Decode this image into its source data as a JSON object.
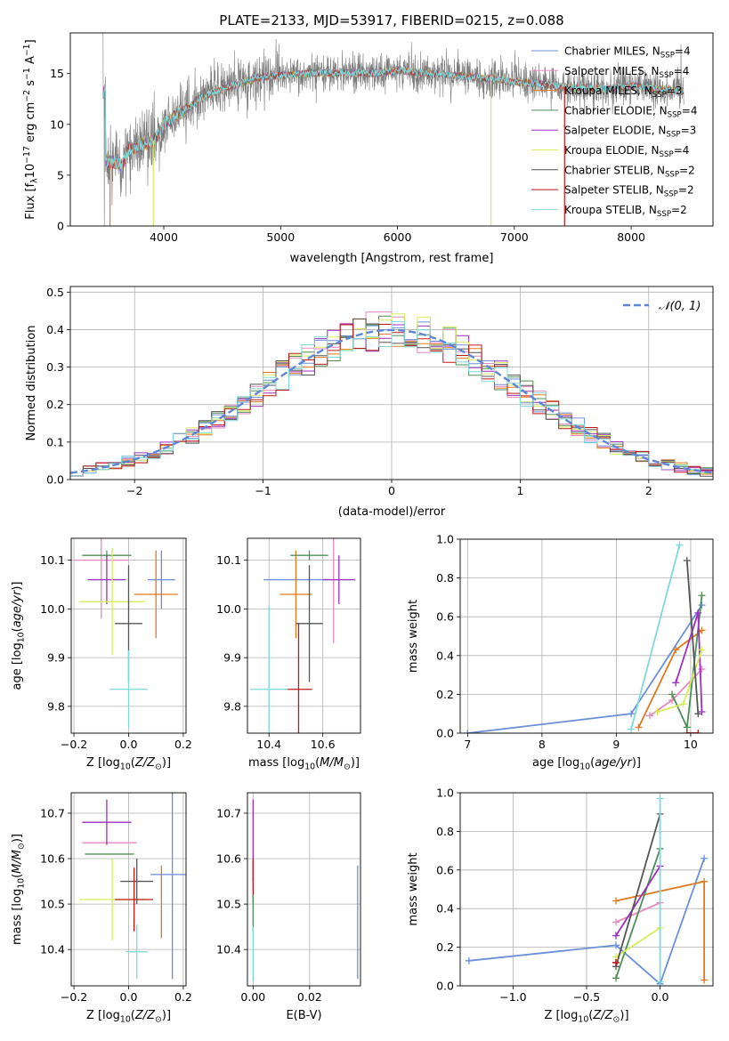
{
  "figure_title": "PLATE=2133, MJD=53917, FIBERID=0215, z=0.088",
  "colors": {
    "Chabrier MILES": "#6a8fdc",
    "Salpeter MILES": "#e58ac1",
    "Kroupa MILES": "#e07a1f",
    "Chabrier ELODIE": "#4f8f57",
    "Salpeter ELODIE": "#9b30c0",
    "Kroupa ELODIE": "#d6ec5a",
    "Chabrier STELIB": "#555555",
    "Salpeter STELIB": "#c01818",
    "Kroupa STELIB": "#7fd9dc",
    "gaussian": "#5f86d4"
  },
  "chart_data": [
    {
      "id": "spectrum",
      "type": "line",
      "title": "PLATE=2133, MJD=53917, FIBERID=0215, z=0.088",
      "xlabel": "wavelength [Angstrom, rest frame]",
      "ylabel": "Flux [f_λ 10^-17 erg cm^-2 s^-1 A^-1]",
      "xlim": [
        3200,
        8700
      ],
      "ylim": [
        0,
        19
      ],
      "xticks": [
        4000,
        5000,
        6000,
        7000,
        8000
      ],
      "yticks": [
        0,
        5,
        10,
        15
      ],
      "grid": false,
      "legend_position": "upper right",
      "legend": [
        {
          "name": "Chabrier MILES",
          "nssp": "4"
        },
        {
          "name": "Salpeter MILES",
          "nssp": "4"
        },
        {
          "name": "Kroupa MILES",
          "nssp": "3"
        },
        {
          "name": "Chabrier ELODIE",
          "nssp": "4"
        },
        {
          "name": "Salpeter ELODIE",
          "nssp": "3"
        },
        {
          "name": "Kroupa ELODIE",
          "nssp": "4"
        },
        {
          "name": "Chabrier STELIB",
          "nssp": "2"
        },
        {
          "name": "Salpeter STELIB",
          "nssp": "2"
        },
        {
          "name": "Kroupa STELIB",
          "nssp": "2"
        }
      ],
      "continuum_wavelength": [
        3500,
        3650,
        3700,
        3800,
        3900,
        3950,
        4000,
        4100,
        4200,
        4300,
        4500,
        4800,
        5000,
        5200,
        5500,
        5800,
        6000,
        6300,
        6500,
        6800,
        7000,
        7200,
        7500,
        7800,
        8000,
        8200,
        8300,
        8450
      ],
      "continuum_flux": [
        6.5,
        6.0,
        7.5,
        8.0,
        8.2,
        9.0,
        10.0,
        10.8,
        11.5,
        12.5,
        13.5,
        14.6,
        14.8,
        15.0,
        15.1,
        15.0,
        15.3,
        15.0,
        14.8,
        14.5,
        14.2,
        14.0,
        13.6,
        13.5,
        13.8,
        13.5,
        13.4,
        13.2
      ],
      "spikes": [
        {
          "x": 3540,
          "y_low": 0,
          "color": "Kroupa MILES"
        },
        {
          "x": 3910,
          "y_low": 0,
          "color": "Kroupa ELODIE"
        },
        {
          "x": 6800,
          "y_low": 0,
          "color": "Kroupa ELODIE"
        },
        {
          "x": 7430,
          "y_low": 0,
          "color": "Salpeter STELIB"
        }
      ]
    },
    {
      "id": "residuals",
      "type": "histogram",
      "xlabel": "(data-model)/error",
      "ylabel": "Normed distribution",
      "xlim": [
        -2.5,
        2.5
      ],
      "ylim": [
        0,
        0.515
      ],
      "xticks": [
        -2,
        -1,
        0,
        1,
        2
      ],
      "yticks": [
        0.0,
        0.1,
        0.2,
        0.3,
        0.4,
        0.5
      ],
      "grid": true,
      "legend_position": "upper right",
      "gaussian_label": "𝒩(0, 1)",
      "bin_width": 0.1,
      "series_order": [
        "Chabrier MILES",
        "Salpeter MILES",
        "Kroupa MILES",
        "Chabrier ELODIE",
        "Salpeter ELODIE",
        "Kroupa ELODIE",
        "Chabrier STELIB",
        "Salpeter STELIB",
        "Kroupa STELIB"
      ]
    },
    {
      "id": "age_vs_Z",
      "type": "scatter",
      "xlabel": "Z [log10(Z/Z⊙)]",
      "ylabel": "age [log10(age/yr)]",
      "xlim": [
        -0.21,
        0.21
      ],
      "ylim": [
        9.745,
        10.145
      ],
      "xticks": [
        -0.2,
        0.0,
        0.2
      ],
      "yticks": [
        9.8,
        9.9,
        10.0,
        10.1
      ],
      "grid": true,
      "points": [
        {
          "series": "Chabrier MILES",
          "x": 0.12,
          "y": 10.06,
          "xerr": 0.05,
          "yerr": 0.06
        },
        {
          "series": "Salpeter MILES",
          "x": -0.1,
          "y": 10.1,
          "xerr": 0.1,
          "yerr": 0.12
        },
        {
          "series": "Kroupa MILES",
          "x": 0.1,
          "y": 10.03,
          "xerr": 0.08,
          "yerr": 0.09
        },
        {
          "series": "Chabrier ELODIE",
          "x": -0.08,
          "y": 10.11,
          "xerr": 0.09,
          "yerr": 0.01
        },
        {
          "series": "Salpeter ELODIE",
          "x": -0.08,
          "y": 10.06,
          "xerr": 0.07,
          "yerr": 0.05
        },
        {
          "series": "Kroupa ELODIE",
          "x": -0.06,
          "y": 10.015,
          "xerr": 0.12,
          "yerr": 0.11
        },
        {
          "series": "Chabrier STELIB",
          "x": -0.0,
          "y": 9.97,
          "xerr": 0.05,
          "yerr": 0.12
        },
        {
          "series": "Salpeter STELIB",
          "x": -0.0,
          "y": 9.83,
          "xerr": 0.0,
          "yerr": 0.0
        },
        {
          "series": "Kroupa STELIB",
          "x": 0.0,
          "y": 9.835,
          "xerr": 0.07,
          "yerr": 0.08
        }
      ]
    },
    {
      "id": "age_vs_mass",
      "type": "scatter",
      "xlabel": "mass [log10(M/M⊙)]",
      "ylabel": "",
      "xlim": [
        10.32,
        10.74
      ],
      "ylim": [
        9.745,
        10.145
      ],
      "xticks": [
        10.4,
        10.6
      ],
      "yticks": [
        9.8,
        9.9,
        10.0,
        10.1
      ],
      "grid": true,
      "points": [
        {
          "series": "Chabrier MILES",
          "x": 10.5,
          "y": 10.06,
          "xerr": 0.12,
          "yerr": 0.0
        },
        {
          "series": "Salpeter MILES",
          "x": 10.64,
          "y": 10.1,
          "xerr": 0.0,
          "yerr": 0.17
        },
        {
          "series": "Kroupa MILES",
          "x": 10.5,
          "y": 10.03,
          "xerr": 0.06,
          "yerr": 0.09
        },
        {
          "series": "Chabrier ELODIE",
          "x": 10.55,
          "y": 10.11,
          "xerr": 0.07,
          "yerr": 0.01
        },
        {
          "series": "Salpeter ELODIE",
          "x": 10.66,
          "y": 10.06,
          "xerr": 0.06,
          "yerr": 0.05
        },
        {
          "series": "Kroupa ELODIE",
          "x": 10.51,
          "y": 10.0,
          "xerr": 0.0,
          "yerr": 0.0
        },
        {
          "series": "Chabrier STELIB",
          "x": 10.55,
          "y": 9.97,
          "xerr": 0.05,
          "yerr": 0.12
        },
        {
          "series": "Salpeter STELIB",
          "x": 10.51,
          "y": 9.835,
          "xerr": 0.05,
          "yerr": 0.135
        },
        {
          "series": "Kroupa STELIB",
          "x": 10.4,
          "y": 9.835,
          "xerr": 0.07,
          "yerr": 0.17
        }
      ]
    },
    {
      "id": "massweight_vs_age",
      "type": "line",
      "xlabel": "age [log10(age/yr)]",
      "ylabel": "mass weight",
      "xlim": [
        6.9,
        10.3
      ],
      "ylim": [
        0,
        1
      ],
      "xticks": [
        7,
        8,
        9,
        10
      ],
      "yticks": [
        0.0,
        0.2,
        0.4,
        0.6,
        0.8,
        1.0
      ],
      "grid": true,
      "series": [
        {
          "name": "Chabrier MILES",
          "x": [
            7.0,
            9.2,
            10.15
          ],
          "y": [
            0.0,
            0.1,
            0.66
          ]
        },
        {
          "name": "Salpeter MILES",
          "x": [
            9.45,
            9.75,
            10.15
          ],
          "y": [
            0.09,
            0.17,
            0.33
          ]
        },
        {
          "name": "Kroupa MILES",
          "x": [
            9.3,
            9.8,
            10.15
          ],
          "y": [
            0.03,
            0.43,
            0.53
          ]
        },
        {
          "name": "Chabrier ELODIE",
          "x": [
            9.75,
            9.95,
            10.15
          ],
          "y": [
            0.2,
            0.03,
            0.71
          ]
        },
        {
          "name": "Salpeter ELODIE",
          "x": [
            9.8,
            10.1,
            10.15
          ],
          "y": [
            0.26,
            0.62,
            0.11
          ]
        },
        {
          "name": "Kroupa ELODIE",
          "x": [
            9.55,
            9.9,
            10.15
          ],
          "y": [
            0.11,
            0.15,
            0.43
          ]
        },
        {
          "name": "Chabrier STELIB",
          "x": [
            9.95,
            10.1
          ],
          "y": [
            0.89,
            0.1
          ]
        },
        {
          "name": "Salpeter STELIB",
          "x": [
            9.95,
            10.1
          ],
          "y": [
            0.0,
            0.0
          ]
        },
        {
          "name": "Kroupa STELIB",
          "x": [
            9.2,
            9.85
          ],
          "y": [
            0.02,
            0.97
          ]
        }
      ]
    },
    {
      "id": "mass_vs_Z",
      "type": "scatter",
      "xlabel": "Z [log10(Z/Z⊙)]",
      "ylabel": "mass [log10(M/M⊙)]",
      "xlim": [
        -0.21,
        0.21
      ],
      "ylim": [
        10.32,
        10.745
      ],
      "xticks": [
        -0.2,
        0.0,
        0.2
      ],
      "yticks": [
        10.4,
        10.5,
        10.6,
        10.7
      ],
      "grid": true,
      "points": [
        {
          "series": "Chabrier MILES",
          "x": 0.16,
          "y": 10.565,
          "xerr": 0.08,
          "yerr": 0.23
        },
        {
          "series": "Salpeter MILES",
          "x": -0.07,
          "y": 10.635,
          "xerr": 0.1,
          "yerr": 0.0
        },
        {
          "series": "Kroupa MILES",
          "x": 0.12,
          "y": 10.505,
          "xerr": 0.0,
          "yerr": 0.08
        },
        {
          "series": "Chabrier ELODIE",
          "x": -0.07,
          "y": 10.61,
          "xerr": 0.09,
          "yerr": 0.0
        },
        {
          "series": "Salpeter ELODIE",
          "x": -0.08,
          "y": 10.68,
          "xerr": 0.09,
          "yerr": 0.05
        },
        {
          "series": "Kroupa ELODIE",
          "x": -0.06,
          "y": 10.51,
          "xerr": 0.12,
          "yerr": 0.09
        },
        {
          "series": "Chabrier STELIB",
          "x": 0.03,
          "y": 10.55,
          "xerr": 0.06,
          "yerr": 0.05
        },
        {
          "series": "Salpeter STELIB",
          "x": 0.02,
          "y": 10.51,
          "xerr": 0.07,
          "yerr": 0.07
        },
        {
          "series": "Kroupa STELIB",
          "x": 0.03,
          "y": 10.395,
          "xerr": 0.04,
          "yerr": 0.06
        }
      ]
    },
    {
      "id": "mass_vs_ebv",
      "type": "scatter",
      "xlabel": "E(B-V)",
      "ylabel": "",
      "xlim": [
        -0.002,
        0.038
      ],
      "ylim": [
        10.32,
        10.745
      ],
      "xticks": [
        0.0,
        0.02
      ],
      "yticks": [
        10.4,
        10.5,
        10.6,
        10.7
      ],
      "grid": true,
      "points": [
        {
          "series": "Chabrier MILES",
          "x": 0.037,
          "y": 10.46,
          "xerr": 0.0,
          "yerr": 0.125
        },
        {
          "series": "Salpeter ELODIE",
          "x": 0.0,
          "y": 10.64,
          "xerr": 0.0,
          "yerr": 0.09
        },
        {
          "series": "Salpeter STELIB",
          "x": 0.0,
          "y": 10.55,
          "xerr": 0.0,
          "yerr": 0.05
        },
        {
          "series": "Chabrier ELODIE",
          "x": 0.0,
          "y": 10.48,
          "xerr": 0.0,
          "yerr": 0.04
        },
        {
          "series": "Kroupa STELIB",
          "x": 0.0,
          "y": 10.39,
          "xerr": 0.0,
          "yerr": 0.06
        }
      ]
    },
    {
      "id": "massweight_vs_Z",
      "type": "line",
      "xlabel": "Z [log10(Z/Z⊙)]",
      "ylabel": "mass weight",
      "xlim": [
        -1.36,
        0.36
      ],
      "ylim": [
        0,
        1
      ],
      "xticks": [
        -1.0,
        -0.5,
        0.0
      ],
      "yticks": [
        0.0,
        0.2,
        0.4,
        0.6,
        0.8,
        1.0
      ],
      "grid": true,
      "series": [
        {
          "name": "Chabrier MILES",
          "x": [
            -1.3,
            -0.3,
            0.0,
            0.3
          ],
          "y": [
            0.13,
            0.21,
            0.01,
            0.66
          ]
        },
        {
          "name": "Salpeter MILES",
          "x": [
            -0.3,
            0.0
          ],
          "y": [
            0.33,
            0.43
          ]
        },
        {
          "name": "Kroupa MILES",
          "x": [
            -0.3,
            0.3,
            0.3
          ],
          "y": [
            0.44,
            0.54,
            0.03
          ]
        },
        {
          "name": "Chabrier ELODIE",
          "x": [
            -0.3,
            0.0
          ],
          "y": [
            0.04,
            0.71
          ]
        },
        {
          "name": "Salpeter ELODIE",
          "x": [
            -0.3,
            0.0
          ],
          "y": [
            0.26,
            0.62
          ]
        },
        {
          "name": "Kroupa ELODIE",
          "x": [
            -0.3,
            0.0
          ],
          "y": [
            0.15,
            0.3
          ]
        },
        {
          "name": "Chabrier STELIB",
          "x": [
            -0.3,
            0.0
          ],
          "y": [
            0.1,
            0.89
          ]
        },
        {
          "name": "Salpeter STELIB",
          "x": [
            -0.3,
            -0.3
          ],
          "y": [
            0.12,
            0.12
          ]
        },
        {
          "name": "Kroupa STELIB",
          "x": [
            0.0,
            0.0
          ],
          "y": [
            0.02,
            0.97
          ]
        }
      ]
    }
  ]
}
